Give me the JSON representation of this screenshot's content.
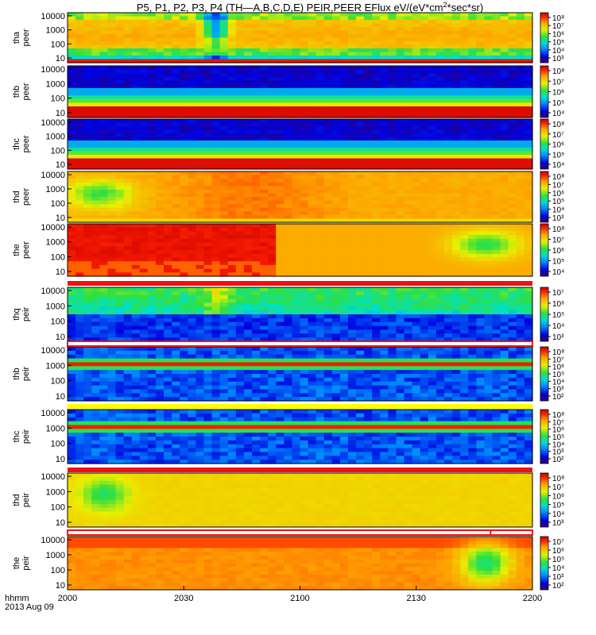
{
  "title": {
    "pre": "P5, P1, P2, P3, P4 (TH—A,B,C,D,E) PEIR,PEER EFlux eV/(eV*cm",
    "sup": "2",
    "post": "*sec*sr)"
  },
  "xaxis": {
    "unit_label": "hhmm",
    "date_label": "2013 Aug 09",
    "tick_labels": [
      "2000",
      "2030",
      "2100",
      "2130",
      "2200"
    ]
  },
  "colors": {
    "flag_red": "#ee1111",
    "flag_yellow": "#ffff00",
    "flag_black": "#000000"
  },
  "chart_data": [
    {
      "type": "heatmap",
      "ylabel": [
        "tha",
        "peer"
      ],
      "yticks": [
        "10000",
        "1000",
        "100",
        "10"
      ],
      "cbar_ticks": [
        "10⁸",
        "10⁷",
        "10⁶",
        "10⁵",
        "10⁴",
        "10³"
      ],
      "cbar_mode": "red_top",
      "style": "tha"
    },
    {
      "type": "heatmap",
      "ylabel": [
        "thb",
        "peer"
      ],
      "yticks": [
        "10000",
        "1000",
        "100",
        "10"
      ],
      "cbar_ticks": [
        "10⁸",
        "10⁷",
        "10⁶",
        "10⁵",
        "10⁴"
      ],
      "cbar_mode": "cycle",
      "style": "ground"
    },
    {
      "type": "heatmap",
      "ylabel": [
        "thc",
        "peer"
      ],
      "yticks": [
        "10000",
        "1000",
        "100",
        "10"
      ],
      "cbar_ticks": [
        "10⁸",
        "10⁷",
        "10⁶",
        "10⁵",
        "10⁴"
      ],
      "cbar_mode": "cycle",
      "style": "ground"
    },
    {
      "type": "heatmap",
      "ylabel": [
        "thd",
        "peer"
      ],
      "yticks": [
        "10000",
        "1000",
        "100",
        "10"
      ],
      "cbar_ticks": [
        "10⁸",
        "10⁷",
        "10⁶",
        "10⁵",
        "10⁴",
        "10³"
      ],
      "cbar_mode": "cycle",
      "style": "thd"
    },
    {
      "type": "heatmap",
      "ylabel": [
        "the",
        "peer"
      ],
      "yticks": [
        "10000",
        "1000",
        "100",
        "10"
      ],
      "cbar_ticks": [
        "10⁸",
        "10⁷",
        "10⁶",
        "10⁵",
        "10⁴"
      ],
      "cbar_mode": "cycle",
      "style": "the"
    },
    {
      "type": "heatmap",
      "ylabel": [
        "thq",
        "peir"
      ],
      "yticks": [
        "10000",
        "1000",
        "100",
        "10"
      ],
      "cbar_ticks": [
        "10⁷",
        "10⁶",
        "10⁵",
        "10⁴",
        "10³"
      ],
      "cbar_mode": "red_top",
      "style": "thaion",
      "flag": "red"
    },
    {
      "type": "heatmap",
      "ylabel": [
        "thb",
        "peir"
      ],
      "yticks": [
        "10000",
        "1000",
        "100",
        "10"
      ],
      "cbar_ticks": [
        "10⁸",
        "10⁷",
        "10⁶",
        "10⁵",
        "10⁴",
        "10³",
        "10²"
      ],
      "cbar_mode": "cycle",
      "style": "groundion",
      "flag": "white"
    },
    {
      "type": "heatmap",
      "ylabel": [
        "thc",
        "peir"
      ],
      "yticks": [
        "10000",
        "1000",
        "100",
        "10"
      ],
      "cbar_ticks": [
        "10⁸",
        "10⁷",
        "10⁶",
        "10⁵",
        "10⁴",
        "10³",
        "10²"
      ],
      "cbar_mode": "cycle",
      "style": "groundion",
      "flag": "yellow"
    },
    {
      "type": "heatmap",
      "ylabel": [
        "thd",
        "peir"
      ],
      "yticks": [
        "10000",
        "1000",
        "100",
        "10"
      ],
      "cbar_ticks": [
        "10⁸",
        "10⁷",
        "10⁶",
        "10⁵",
        "10⁴",
        "10³"
      ],
      "cbar_mode": "cycle",
      "style": "thdion",
      "flag": "red"
    },
    {
      "type": "heatmap",
      "ylabel": [
        "the",
        "peir"
      ],
      "yticks": [
        "10000",
        "1000",
        "100",
        "10"
      ],
      "cbar_ticks": [
        "10⁷",
        "10⁶",
        "10⁵",
        "10⁴",
        "10³",
        "10²"
      ],
      "cbar_mode": "red_top",
      "style": "theion",
      "flag": "white_partial"
    }
  ]
}
